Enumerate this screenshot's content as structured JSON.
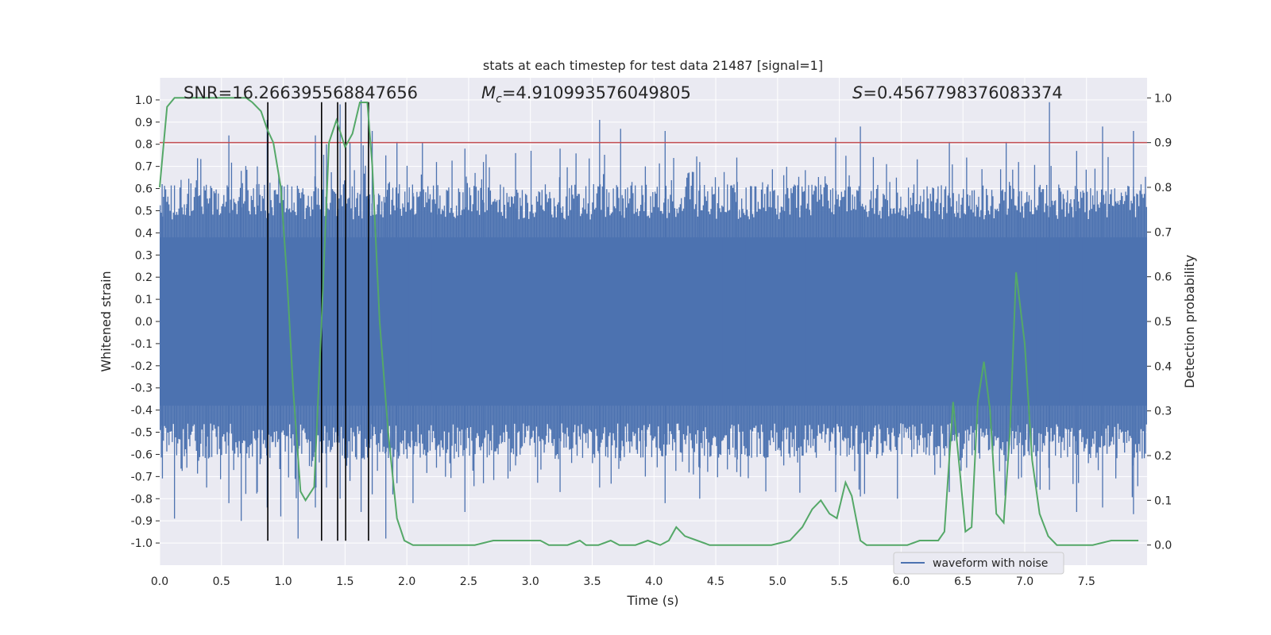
{
  "chart_data": {
    "type": "line",
    "title": "stats at each timestep for test data 21487 [signal=1]",
    "xlabel": "Time (s)",
    "ylabel": "Whitened strain",
    "y2label": "Detection probability",
    "xlim": [
      0.0,
      7.99
    ],
    "ylim": [
      -1.1,
      1.1
    ],
    "y2lim": [
      -0.045,
      1.045
    ],
    "x_ticks": [
      "0.0",
      "0.5",
      "1.0",
      "1.5",
      "2.0",
      "2.5",
      "3.0",
      "3.5",
      "4.0",
      "4.5",
      "5.0",
      "5.5",
      "6.0",
      "6.5",
      "7.0",
      "7.5"
    ],
    "y_ticks": [
      "1.0",
      "0.9",
      "0.8",
      "0.7",
      "0.6",
      "0.5",
      "0.4",
      "0.3",
      "0.2",
      "0.1",
      "0.0",
      "-0.1",
      "-0.2",
      "-0.3",
      "-0.4",
      "-0.5",
      "-0.6",
      "-0.7",
      "-0.8",
      "-0.9",
      "-1.0"
    ],
    "y2_ticks": [
      "1.0",
      "0.9",
      "0.8",
      "0.7",
      "0.6",
      "0.5",
      "0.4",
      "0.3",
      "0.2",
      "0.1",
      "0.0"
    ],
    "grid": true,
    "legend_position": "lower-right",
    "annotations": {
      "snr": "SNR=16.266395568847656",
      "mc_symbol": "M",
      "mc_sub": "c",
      "mc_value": "=4.910993576049805",
      "s_symbol": "S",
      "s_value": "=0.4567798376083374"
    },
    "threshold": {
      "axis": "y2",
      "value": 0.9,
      "color": "#c44e52"
    },
    "vertical_markers_x": [
      0.875,
      1.31,
      1.44,
      1.505,
      1.69
    ],
    "marker_range_y": [
      -0.99,
      0.99
    ],
    "series": [
      {
        "name": "waveform with noise",
        "axis": "y",
        "color": "#4c72b0",
        "envelope": {
          "core_half_width": 0.38,
          "peaks": [
            [
              0.02,
              0.62,
              -0.47
            ],
            [
              0.12,
              0.55,
              -0.89
            ],
            [
              0.22,
              0.53,
              -0.66
            ],
            [
              0.38,
              0.51,
              -0.75
            ],
            [
              0.56,
              0.84,
              -0.82
            ],
            [
              0.66,
              0.68,
              -0.9
            ],
            [
              0.79,
              0.7,
              -0.77
            ],
            [
              0.87,
              0.91,
              -0.84
            ],
            [
              0.98,
              0.6,
              -0.88
            ],
            [
              1.12,
              0.55,
              -0.98
            ],
            [
              1.26,
              0.84,
              -0.84
            ],
            [
              1.35,
              0.8,
              -0.75
            ],
            [
              1.46,
              0.98,
              -0.8
            ],
            [
              1.54,
              0.81,
              -0.72
            ],
            [
              1.63,
              1.0,
              -0.86
            ],
            [
              1.72,
              0.86,
              -0.78
            ],
            [
              1.83,
              0.75,
              -0.98
            ],
            [
              1.92,
              0.81,
              -0.73
            ],
            [
              2.05,
              0.58,
              -0.82
            ],
            [
              2.24,
              0.72,
              -0.66
            ],
            [
              2.47,
              0.78,
              -0.86
            ],
            [
              2.62,
              0.72,
              -0.73
            ],
            [
              2.88,
              0.76,
              -0.65
            ],
            [
              3.24,
              0.78,
              -0.77
            ],
            [
              3.56,
              0.91,
              -0.75
            ],
            [
              3.73,
              0.87,
              -0.63
            ],
            [
              3.93,
              0.7,
              -0.7
            ],
            [
              4.09,
              0.86,
              -0.82
            ],
            [
              4.37,
              0.72,
              -0.8
            ],
            [
              4.67,
              0.74,
              -0.68
            ],
            [
              5.05,
              0.66,
              -0.65
            ],
            [
              5.47,
              0.83,
              -0.77
            ],
            [
              5.67,
              0.88,
              -0.79
            ],
            [
              5.97,
              0.58,
              -0.8
            ],
            [
              6.39,
              0.81,
              -0.77
            ],
            [
              6.53,
              0.74,
              -0.66
            ],
            [
              6.85,
              0.81,
              -0.63
            ],
            [
              6.95,
              0.72,
              -0.71
            ],
            [
              7.2,
              0.99,
              -0.76
            ],
            [
              7.42,
              0.77,
              -0.86
            ],
            [
              7.63,
              0.88,
              -0.84
            ],
            [
              7.88,
              0.86,
              -0.87
            ]
          ]
        }
      },
      {
        "name": "",
        "axis": "y2",
        "color": "#55a868",
        "x": [
          0.0,
          0.06,
          0.12,
          0.2,
          0.3,
          0.4,
          0.5,
          0.6,
          0.7,
          0.75,
          0.82,
          0.87,
          0.92,
          0.98,
          1.03,
          1.08,
          1.14,
          1.18,
          1.25,
          1.31,
          1.37,
          1.43,
          1.5,
          1.56,
          1.62,
          1.68,
          1.72,
          1.78,
          1.85,
          1.92,
          1.98,
          2.05,
          2.2,
          2.4,
          2.55,
          2.7,
          2.85,
          3.0,
          3.08,
          3.15,
          3.3,
          3.4,
          3.45,
          3.55,
          3.65,
          3.72,
          3.85,
          3.95,
          4.05,
          4.12,
          4.18,
          4.25,
          4.35,
          4.45,
          4.6,
          4.8,
          4.95,
          5.1,
          5.2,
          5.28,
          5.35,
          5.42,
          5.48,
          5.55,
          5.6,
          5.67,
          5.72,
          5.8,
          6.05,
          6.15,
          6.25,
          6.3,
          6.35,
          6.42,
          6.48,
          6.52,
          6.57,
          6.62,
          6.67,
          6.72,
          6.77,
          6.83,
          6.88,
          6.93,
          7.0,
          7.06,
          7.12,
          7.19,
          7.26,
          7.33,
          7.4,
          7.55,
          7.7,
          7.82,
          7.92
        ],
        "y": [
          0.8,
          0.98,
          1.0,
          1.0,
          1.0,
          1.0,
          1.0,
          1.0,
          1.0,
          0.99,
          0.97,
          0.93,
          0.9,
          0.8,
          0.6,
          0.35,
          0.12,
          0.1,
          0.13,
          0.5,
          0.9,
          0.95,
          0.89,
          0.92,
          0.99,
          0.99,
          0.85,
          0.5,
          0.25,
          0.06,
          0.01,
          0.0,
          0.0,
          0.0,
          0.0,
          0.01,
          0.01,
          0.01,
          0.01,
          0.0,
          0.0,
          0.01,
          0.0,
          0.0,
          0.01,
          0.0,
          0.0,
          0.01,
          0.0,
          0.01,
          0.04,
          0.02,
          0.01,
          0.0,
          0.0,
          0.0,
          0.0,
          0.01,
          0.04,
          0.08,
          0.1,
          0.07,
          0.06,
          0.14,
          0.11,
          0.01,
          0.0,
          0.0,
          0.0,
          0.01,
          0.01,
          0.01,
          0.03,
          0.32,
          0.15,
          0.03,
          0.04,
          0.32,
          0.41,
          0.3,
          0.07,
          0.05,
          0.25,
          0.61,
          0.45,
          0.19,
          0.07,
          0.02,
          0.0,
          0.0,
          0.0,
          0.0,
          0.01,
          0.01,
          0.01
        ]
      }
    ]
  }
}
